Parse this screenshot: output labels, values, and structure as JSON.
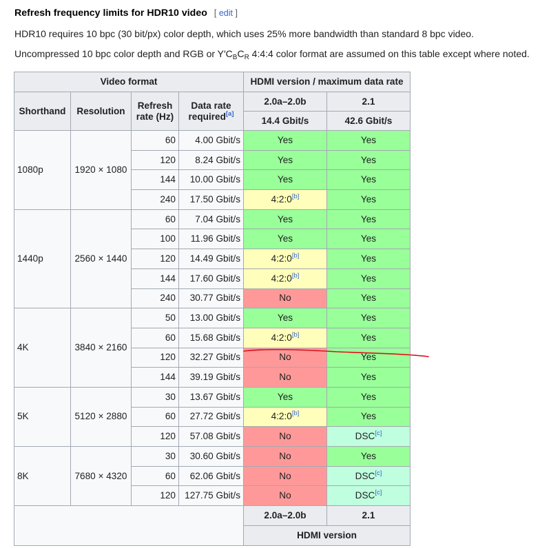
{
  "heading": {
    "title": "Refresh frequency limits for HDR10 video",
    "edit_open": "[",
    "edit_label": "edit",
    "edit_close": "]"
  },
  "paragraphs": {
    "p1": "HDR10 requires 10 bpc (30 bit/px) color depth, which uses 25% more bandwidth than standard 8 bpc video.",
    "p2_before": "Uncompressed 10 bpc color depth and RGB or Y′C",
    "p2_sub_b": "B",
    "p2_c": "C",
    "p2_sub_r": "R",
    "p2_after": " 4:4:4 color format are assumed on this table except where noted."
  },
  "table": {
    "header": {
      "video_format": "Video format",
      "hdmi_group": "HDMI version / maximum data rate",
      "shorthand": "Shorthand",
      "resolution": "Resolution",
      "refresh_line1": "Refresh",
      "refresh_line2": "rate (Hz)",
      "datarate_line1": "Data rate",
      "datarate_line2": "required",
      "datarate_note": "[a]",
      "ver_a": "2.0a–2.0b",
      "ver_b": "2.1",
      "rate_a": "14.4 Gbit/s",
      "rate_b": "42.6 Gbit/s"
    },
    "groups": [
      {
        "shorthand": "1080p",
        "resolution": "1920 × 1080",
        "rows": [
          {
            "refresh": "60",
            "rate": "4.00 Gbit/s",
            "a": "Yes",
            "a_status": "yes",
            "b": "Yes",
            "b_status": "yes"
          },
          {
            "refresh": "120",
            "rate": "8.24 Gbit/s",
            "a": "Yes",
            "a_status": "yes",
            "b": "Yes",
            "b_status": "yes"
          },
          {
            "refresh": "144",
            "rate": "10.00 Gbit/s",
            "a": "Yes",
            "a_status": "yes",
            "b": "Yes",
            "b_status": "yes"
          },
          {
            "refresh": "240",
            "rate": "17.50 Gbit/s",
            "a": "4:2:0",
            "a_note": "[b]",
            "a_status": "partial",
            "b": "Yes",
            "b_status": "yes"
          }
        ]
      },
      {
        "shorthand": "1440p",
        "resolution": "2560 × 1440",
        "rows": [
          {
            "refresh": "60",
            "rate": "7.04 Gbit/s",
            "a": "Yes",
            "a_status": "yes",
            "b": "Yes",
            "b_status": "yes"
          },
          {
            "refresh": "100",
            "rate": "11.96 Gbit/s",
            "a": "Yes",
            "a_status": "yes",
            "b": "Yes",
            "b_status": "yes"
          },
          {
            "refresh": "120",
            "rate": "14.49 Gbit/s",
            "a": "4:2:0",
            "a_note": "[b]",
            "a_status": "partial",
            "b": "Yes",
            "b_status": "yes"
          },
          {
            "refresh": "144",
            "rate": "17.60 Gbit/s",
            "a": "4:2:0",
            "a_note": "[b]",
            "a_status": "partial",
            "b": "Yes",
            "b_status": "yes"
          },
          {
            "refresh": "240",
            "rate": "30.77 Gbit/s",
            "a": "No",
            "a_status": "no",
            "b": "Yes",
            "b_status": "yes"
          }
        ]
      },
      {
        "shorthand": "4K",
        "resolution": "3840 × 2160",
        "rows": [
          {
            "refresh": "50",
            "rate": "13.00 Gbit/s",
            "a": "Yes",
            "a_status": "yes",
            "b": "Yes",
            "b_status": "yes"
          },
          {
            "refresh": "60",
            "rate": "15.68 Gbit/s",
            "a": "4:2:0",
            "a_note": "[b]",
            "a_status": "partial",
            "b": "Yes",
            "b_status": "yes"
          },
          {
            "refresh": "120",
            "rate": "32.27 Gbit/s",
            "a": "No",
            "a_status": "no",
            "b": "Yes",
            "b_status": "yes"
          },
          {
            "refresh": "144",
            "rate": "39.19 Gbit/s",
            "a": "No",
            "a_status": "no",
            "b": "Yes",
            "b_status": "yes"
          }
        ]
      },
      {
        "shorthand": "5K",
        "resolution": "5120 × 2880",
        "rows": [
          {
            "refresh": "30",
            "rate": "13.67 Gbit/s",
            "a": "Yes",
            "a_status": "yes",
            "b": "Yes",
            "b_status": "yes"
          },
          {
            "refresh": "60",
            "rate": "27.72 Gbit/s",
            "a": "4:2:0",
            "a_note": "[b]",
            "a_status": "partial",
            "b": "Yes",
            "b_status": "yes"
          },
          {
            "refresh": "120",
            "rate": "57.08 Gbit/s",
            "a": "No",
            "a_status": "no",
            "b": "DSC",
            "b_note": "[c]",
            "b_status": "dsc"
          }
        ]
      },
      {
        "shorthand": "8K",
        "resolution": "7680 × 4320",
        "rows": [
          {
            "refresh": "30",
            "rate": "30.60 Gbit/s",
            "a": "No",
            "a_status": "no",
            "b": "Yes",
            "b_status": "yes"
          },
          {
            "refresh": "60",
            "rate": "62.06 Gbit/s",
            "a": "No",
            "a_status": "no",
            "b": "DSC",
            "b_note": "[c]",
            "b_status": "dsc"
          },
          {
            "refresh": "120",
            "rate": "127.75 Gbit/s",
            "a": "No",
            "a_status": "no",
            "b": "DSC",
            "b_note": "[c]",
            "b_status": "dsc"
          }
        ]
      }
    ],
    "footer": {
      "ver_a": "2.0a–2.0b",
      "ver_b": "2.1",
      "label": "HDMI version"
    }
  },
  "colors": {
    "yes": "#99ff99",
    "no": "#ff9999",
    "partial": "#ffffbb",
    "dsc": "#bfffdf",
    "annotation": "#e0101a"
  }
}
